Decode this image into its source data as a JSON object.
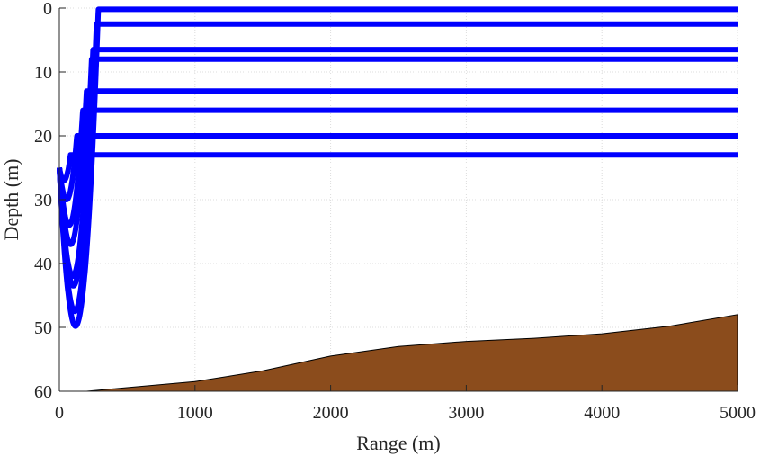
{
  "chart_data": {
    "type": "line",
    "title": "",
    "xlabel": "Range (m)",
    "ylabel": "Depth (m)",
    "xlim": [
      0,
      5000
    ],
    "ylim": [
      0,
      60
    ],
    "y_reversed": true,
    "xticks": [
      0,
      1000,
      2000,
      3000,
      4000,
      5000
    ],
    "yticks": [
      0,
      10,
      20,
      30,
      40,
      50,
      60
    ],
    "xtick_labels": [
      "0",
      "1000",
      "2000",
      "3000",
      "4000",
      "5000"
    ],
    "ytick_labels": [
      "0",
      "10",
      "20",
      "30",
      "40",
      "50",
      "60"
    ],
    "grid": true,
    "source": {
      "range": 0,
      "depth": 25
    },
    "ray_color": "#0000ff",
    "bottom_color": "#8b4c1c",
    "bathymetry": {
      "range": [
        0,
        200,
        1000,
        1500,
        2000,
        2500,
        3000,
        3500,
        4000,
        4500,
        5000
      ],
      "depth": [
        60,
        60,
        58.5,
        56.8,
        54.5,
        53.0,
        52.2,
        51.7,
        51.0,
        49.8,
        48.0
      ]
    },
    "rays": [
      {
        "name": "ray-turn-0.2",
        "turn_depth": 0.2
      },
      {
        "name": "ray-turn-2.5",
        "turn_depth": 2.5
      },
      {
        "name": "ray-turn-6.5",
        "turn_depth": 6.5
      },
      {
        "name": "ray-turn-8",
        "turn_depth": 8
      },
      {
        "name": "ray-turn-13",
        "turn_depth": 13
      },
      {
        "name": "ray-turn-16",
        "turn_depth": 16
      },
      {
        "name": "ray-turn-20",
        "turn_depth": 20
      },
      {
        "name": "ray-turn-23",
        "turn_depth": 23
      }
    ]
  }
}
